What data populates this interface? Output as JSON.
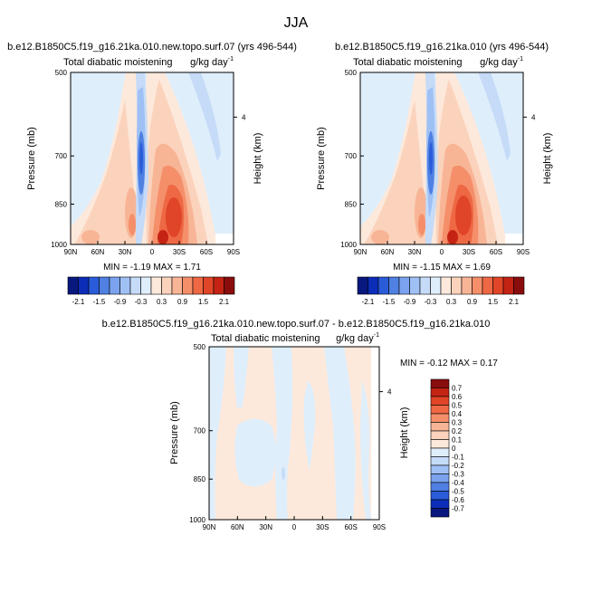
{
  "figure": {
    "title": "JJA"
  },
  "colors": {
    "neg_7": "#08187e",
    "neg_6": "#0c2db8",
    "neg_5": "#2a5bd8",
    "neg_4": "#4f80e2",
    "neg_3": "#7aa2ee",
    "neg_2": "#9fc0f5",
    "neg_1": "#c5dbf8",
    "neg_0": "#dfeefb",
    "pos_0": "#fde9db",
    "pos_1": "#fbd3bc",
    "pos_2": "#f8b596",
    "pos_3": "#f48f6a",
    "pos_4": "#ee6844",
    "pos_5": "#e04527",
    "pos_6": "#c42314",
    "pos_7": "#8a0d0d"
  },
  "chart_data": [
    {
      "type": "heatmap",
      "panel": "top-left",
      "title": "b.e12.B1850C5.f19_g16.21ka.010.new.topo.surf.07 (yrs 496-544)",
      "subtitle_left": "Total diabatic moistening",
      "units_text": "g/kg day",
      "units_exp": "-1",
      "ylabel": "Pressure (mb)",
      "ylabel_right": "Height (km)",
      "x_ticks": [
        "90N",
        "60N",
        "30N",
        "0",
        "30S",
        "60S",
        "90S"
      ],
      "y_ticks": [
        "500",
        "700",
        "850",
        "1000"
      ],
      "right_ticks": [
        "4"
      ],
      "stats_text": "MIN = -1.19  MAX =  1.71",
      "min": -1.19,
      "max": 1.71,
      "colorbar_labels": [
        "-2.1",
        "-1.5",
        "-0.9",
        "-0.3",
        "0.3",
        "0.9",
        "1.5",
        "2.1"
      ]
    },
    {
      "type": "heatmap",
      "panel": "top-right",
      "title": "b.e12.B1850C5.f19_g16.21ka.010 (yrs 496-544)",
      "subtitle_left": "Total diabatic moistening",
      "units_text": "g/kg day",
      "units_exp": "-1",
      "ylabel": "Pressure (mb)",
      "ylabel_right": "Height (km)",
      "x_ticks": [
        "90N",
        "60N",
        "30N",
        "0",
        "30S",
        "60S",
        "90S"
      ],
      "y_ticks": [
        "500",
        "700",
        "850",
        "1000"
      ],
      "right_ticks": [
        "4"
      ],
      "stats_text": "MIN = -1.15  MAX =  1.69",
      "min": -1.15,
      "max": 1.69,
      "colorbar_labels": [
        "-2.1",
        "-1.5",
        "-0.9",
        "-0.3",
        "0.3",
        "0.9",
        "1.5",
        "2.1"
      ]
    },
    {
      "type": "heatmap",
      "panel": "bottom",
      "title": "b.e12.B1850C5.f19_g16.21ka.010.new.topo.surf.07 - b.e12.B1850C5.f19_g16.21ka.010",
      "subtitle_left": "Total diabatic moistening",
      "units_text": "g/kg day",
      "units_exp": "-1",
      "ylabel": "Pressure (mb)",
      "ylabel_right": "Height (km)",
      "x_ticks": [
        "90N",
        "60N",
        "30N",
        "0",
        "30S",
        "60S",
        "90S"
      ],
      "y_ticks": [
        "500",
        "700",
        "850",
        "1000"
      ],
      "right_ticks": [
        "4"
      ],
      "stats_text": "MIN = -0.12  MAX =  0.17",
      "min": -0.12,
      "max": 0.17,
      "colorbar_labels": [
        "0.7",
        "0.6",
        "0.5",
        "0.4",
        "0.3",
        "0.2",
        "0.1",
        "0",
        "-0.1",
        "-0.2",
        "-0.3",
        "-0.4",
        "-0.5",
        "-0.6",
        "-0.7"
      ]
    }
  ]
}
